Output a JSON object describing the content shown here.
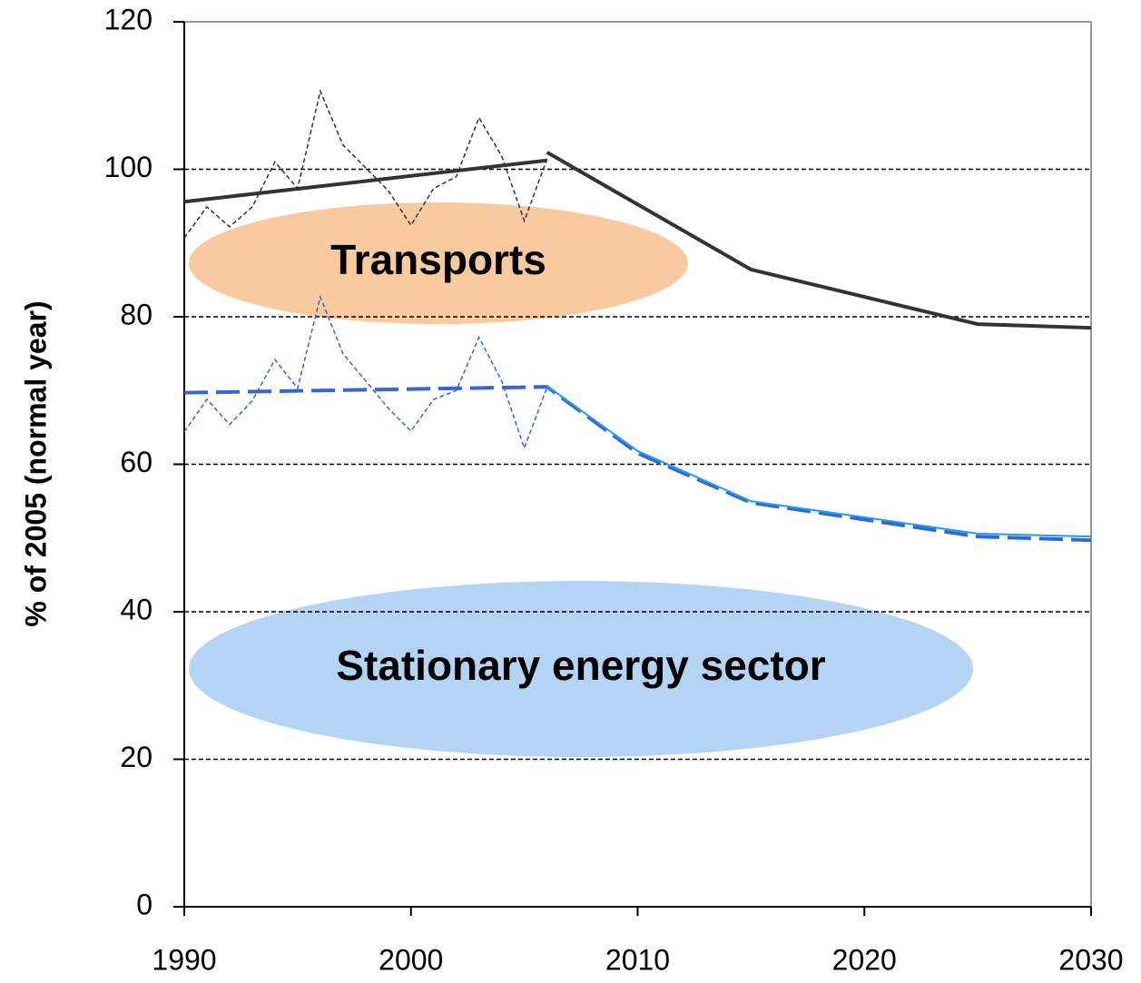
{
  "chart_data": {
    "type": "line",
    "ylabel": "% of 2005 (normal year)",
    "xlim": [
      1990,
      2030
    ],
    "xticks": [
      1990,
      2000,
      2010,
      2020,
      2030
    ],
    "ylim": [
      0,
      120
    ],
    "yticks": [
      0,
      20,
      40,
      60,
      80,
      100,
      120
    ],
    "grid": true,
    "series": [
      {
        "color": "#333333",
        "line_style": "thin-dashed",
        "x": [
          1990,
          1991,
          1992,
          1993,
          1994,
          1995,
          1996,
          1997,
          1998,
          1999,
          2000,
          2001,
          2002,
          2003,
          2004,
          2005,
          2006
        ],
        "values": [
          90.7,
          94.9,
          92.2,
          94.9,
          101,
          97.4,
          110.6,
          103.3,
          100.2,
          97.1,
          92.4,
          97.4,
          99,
          107,
          101.8,
          93,
          101.4
        ]
      },
      {
        "color": "#333333",
        "line_style": "solid",
        "x": [
          1990,
          2006
        ],
        "values": [
          95.6,
          101.2
        ]
      },
      {
        "color": "#333333",
        "line_style": "solid",
        "x": [
          2006,
          2015,
          2025,
          2030
        ],
        "values": [
          102.3,
          86.4,
          79,
          78.5
        ]
      },
      {
        "color": "#3366dd",
        "line_style": "thin-dashed",
        "x": [
          1990,
          1991,
          1992,
          1993,
          1994,
          1995,
          1996,
          1997,
          1998,
          1999,
          2000,
          2001,
          2002,
          2003,
          2004,
          2005,
          2006
        ],
        "values": [
          64.4,
          68.8,
          65.4,
          68.6,
          74.2,
          70.3,
          82.7,
          75,
          71.3,
          67.6,
          64.5,
          68.8,
          70,
          77.2,
          71.3,
          62.2,
          70.4
        ]
      },
      {
        "color": "#3366dd",
        "line_style": "long-dashed",
        "x": [
          1990,
          2006,
          2010,
          2015,
          2025,
          2030
        ],
        "values": [
          69.7,
          70.5,
          61.5,
          54.8,
          50.2,
          49.7
        ]
      },
      {
        "color": "#1fa0e0",
        "line_style": "thin-solid",
        "x": [
          2006,
          2010,
          2015,
          2025,
          2030
        ],
        "values": [
          70.6,
          61.8,
          55,
          50.6,
          50.2
        ]
      }
    ],
    "annotations": [
      {
        "text": "Transports",
        "color": "#f9c9a0"
      },
      {
        "text": "Stationary energy sector",
        "color": "#b3d4f5"
      }
    ]
  }
}
